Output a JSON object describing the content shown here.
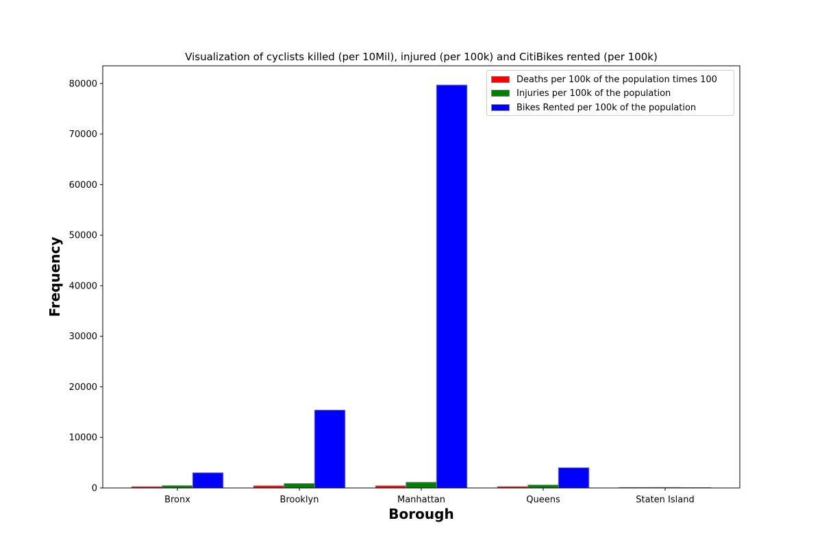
{
  "chart_data": {
    "type": "bar",
    "title": "Visualization of cyclists killed (per 10Mil), injured (per 100k) and CitiBikes rented (per 100k)",
    "xlabel": "Borough",
    "ylabel": "Frequency",
    "categories": [
      "Bronx",
      "Brooklyn",
      "Manhattan",
      "Queens",
      "Staten Island"
    ],
    "ylim": [
      0,
      83500
    ],
    "yticks": [
      0,
      10000,
      20000,
      30000,
      40000,
      50000,
      60000,
      70000,
      80000
    ],
    "ytick_labels": [
      "0",
      "10000",
      "20000",
      "30000",
      "40000",
      "50000",
      "60000",
      "70000",
      "80000"
    ],
    "grid": false,
    "legend_position": "top-right",
    "series": [
      {
        "name": "Deaths per 100k of the population times 100",
        "color": "#ff0000",
        "values": [
          250,
          420,
          420,
          260,
          90
        ]
      },
      {
        "name": "Injuries per 100k of the population",
        "color": "#008000",
        "values": [
          450,
          870,
          1120,
          580,
          100
        ]
      },
      {
        "name": "Bikes Rented per 100k of the population",
        "color": "#0000ff",
        "values": [
          3000,
          15400,
          79700,
          4000,
          0
        ]
      }
    ],
    "bar_edge_color": "#808080"
  }
}
